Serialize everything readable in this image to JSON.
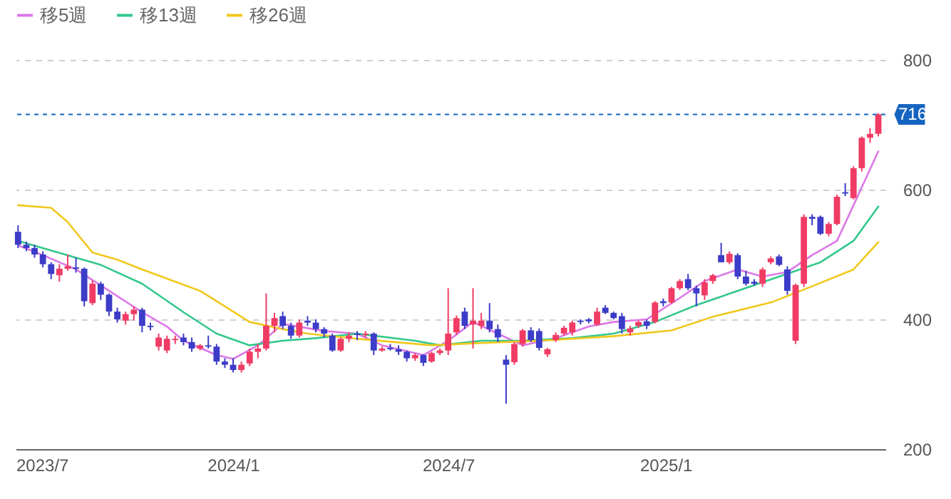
{
  "chart_data": {
    "type": "candlestick",
    "x": [
      "2023-07-03",
      "2023-07-10",
      "2023-07-17",
      "2023-07-24",
      "2023-07-31",
      "2023-08-07",
      "2023-08-14",
      "2023-08-21",
      "2023-08-28",
      "2023-09-04",
      "2023-09-11",
      "2023-09-18",
      "2023-09-25",
      "2023-10-02",
      "2023-10-09",
      "2023-10-16",
      "2023-10-23",
      "2023-10-30",
      "2023-11-06",
      "2023-11-13",
      "2023-11-20",
      "2023-11-27",
      "2023-12-04",
      "2023-12-11",
      "2023-12-18",
      "2023-12-25",
      "2024-01-01",
      "2024-01-08",
      "2024-01-15",
      "2024-01-22",
      "2024-01-29",
      "2024-02-05",
      "2024-02-12",
      "2024-02-19",
      "2024-02-26",
      "2024-03-04",
      "2024-03-11",
      "2024-03-18",
      "2024-03-25",
      "2024-04-01",
      "2024-04-08",
      "2024-04-15",
      "2024-04-22",
      "2024-04-29",
      "2024-05-06",
      "2024-05-13",
      "2024-05-20",
      "2024-05-27",
      "2024-06-03",
      "2024-06-10",
      "2024-06-17",
      "2024-06-24",
      "2024-07-01",
      "2024-07-08",
      "2024-07-15",
      "2024-07-22",
      "2024-07-29",
      "2024-08-05",
      "2024-08-12",
      "2024-08-19",
      "2024-08-26",
      "2024-09-02",
      "2024-09-09",
      "2024-09-16",
      "2024-09-23",
      "2024-09-30",
      "2024-10-07",
      "2024-10-14",
      "2024-10-21",
      "2024-10-28",
      "2024-11-04",
      "2024-11-11",
      "2024-11-18",
      "2024-11-25",
      "2024-12-02",
      "2024-12-09",
      "2024-12-16",
      "2024-12-23",
      "2024-12-30",
      "2025-01-06",
      "2025-01-13",
      "2025-01-20",
      "2025-01-27",
      "2025-02-03",
      "2025-02-10",
      "2025-02-17",
      "2025-02-24",
      "2025-03-03",
      "2025-03-10",
      "2025-03-17",
      "2025-03-24",
      "2025-03-31",
      "2025-04-07",
      "2025-04-14",
      "2025-04-21",
      "2025-04-28",
      "2025-05-05",
      "2025-05-12",
      "2025-05-19",
      "2025-05-26",
      "2025-06-02",
      "2025-06-09",
      "2025-06-16",
      "2025-06-23",
      "2025-06-30"
    ],
    "ohlc": [
      [
        535,
        545,
        510,
        515
      ],
      [
        515,
        520,
        505,
        510
      ],
      [
        510,
        515,
        495,
        500
      ],
      [
        500,
        505,
        480,
        485
      ],
      [
        485,
        488,
        462,
        470
      ],
      [
        468,
        485,
        458,
        478
      ],
      [
        478,
        500,
        475,
        482
      ],
      [
        480,
        495,
        472,
        478
      ],
      [
        478,
        480,
        420,
        428
      ],
      [
        425,
        460,
        422,
        455
      ],
      [
        455,
        458,
        430,
        438
      ],
      [
        438,
        440,
        405,
        412
      ],
      [
        412,
        418,
        395,
        400
      ],
      [
        398,
        412,
        392,
        408
      ],
      [
        408,
        420,
        398,
        415
      ],
      [
        415,
        418,
        380,
        390
      ],
      [
        390,
        395,
        383,
        388
      ],
      [
        358,
        378,
        352,
        372
      ],
      [
        352,
        375,
        348,
        370
      ],
      [
        368,
        375,
        362,
        370
      ],
      [
        372,
        378,
        360,
        365
      ],
      [
        365,
        372,
        350,
        355
      ],
      [
        355,
        362,
        352,
        360
      ],
      [
        360,
        375,
        355,
        358
      ],
      [
        358,
        362,
        330,
        335
      ],
      [
        335,
        340,
        325,
        330
      ],
      [
        330,
        340,
        318,
        322
      ],
      [
        322,
        335,
        318,
        330
      ],
      [
        332,
        355,
        328,
        350
      ],
      [
        350,
        362,
        340,
        355
      ],
      [
        355,
        440,
        352,
        390
      ],
      [
        390,
        410,
        380,
        402
      ],
      [
        405,
        412,
        385,
        390
      ],
      [
        390,
        395,
        370,
        375
      ],
      [
        375,
        400,
        372,
        395
      ],
      [
        398,
        405,
        390,
        395
      ],
      [
        395,
        400,
        380,
        385
      ],
      [
        385,
        388,
        372,
        378
      ],
      [
        375,
        378,
        350,
        352
      ],
      [
        352,
        372,
        350,
        370
      ],
      [
        370,
        380,
        365,
        375
      ],
      [
        378,
        382,
        368,
        376
      ],
      [
        376,
        382,
        372,
        378
      ],
      [
        378,
        380,
        345,
        352
      ],
      [
        352,
        358,
        350,
        355
      ],
      [
        356,
        362,
        352,
        354
      ],
      [
        354,
        360,
        345,
        350
      ],
      [
        350,
        352,
        335,
        340
      ],
      [
        340,
        348,
        336,
        345
      ],
      [
        345,
        346,
        328,
        333
      ],
      [
        335,
        350,
        333,
        348
      ],
      [
        348,
        355,
        345,
        352
      ],
      [
        352,
        448,
        345,
        378
      ],
      [
        380,
        406,
        376,
        402
      ],
      [
        412,
        418,
        385,
        390
      ],
      [
        392,
        448,
        355,
        398
      ],
      [
        390,
        410,
        385,
        398
      ],
      [
        398,
        425,
        380,
        385
      ],
      [
        385,
        392,
        365,
        372
      ],
      [
        338,
        345,
        270,
        330
      ],
      [
        334,
        365,
        330,
        362
      ],
      [
        362,
        385,
        358,
        383
      ],
      [
        383,
        388,
        365,
        368
      ],
      [
        382,
        386,
        352,
        356
      ],
      [
        346,
        356,
        342,
        354
      ],
      [
        368,
        380,
        365,
        376
      ],
      [
        378,
        390,
        375,
        387
      ],
      [
        380,
        398,
        375,
        395
      ],
      [
        398,
        400,
        392,
        396
      ],
      [
        400,
        402,
        394,
        397
      ],
      [
        392,
        418,
        390,
        412
      ],
      [
        418,
        422,
        408,
        410
      ],
      [
        410,
        412,
        400,
        402
      ],
      [
        405,
        410,
        378,
        385
      ],
      [
        380,
        390,
        375,
        386
      ],
      [
        390,
        398,
        387,
        396
      ],
      [
        397,
        400,
        385,
        390
      ],
      [
        396,
        428,
        394,
        426
      ],
      [
        428,
        432,
        420,
        425
      ],
      [
        426,
        450,
        424,
        448
      ],
      [
        448,
        462,
        445,
        459
      ],
      [
        462,
        470,
        445,
        448
      ],
      [
        448,
        452,
        420,
        440
      ],
      [
        437,
        462,
        430,
        457
      ],
      [
        459,
        470,
        455,
        468
      ],
      [
        499,
        518,
        488,
        488
      ],
      [
        488,
        505,
        485,
        501
      ],
      [
        499,
        502,
        462,
        466
      ],
      [
        466,
        475,
        452,
        455
      ],
      [
        458,
        462,
        452,
        455
      ],
      [
        455,
        480,
        450,
        477
      ],
      [
        488,
        497,
        485,
        494
      ],
      [
        497,
        500,
        482,
        484
      ],
      [
        477,
        482,
        438,
        444
      ],
      [
        367,
        455,
        362,
        453
      ],
      [
        455,
        562,
        450,
        558
      ],
      [
        558,
        562,
        545,
        555
      ],
      [
        558,
        560,
        530,
        532
      ],
      [
        532,
        550,
        528,
        547
      ],
      [
        547,
        592,
        545,
        589
      ],
      [
        596,
        610,
        590,
        594
      ],
      [
        587,
        636,
        585,
        633
      ],
      [
        633,
        682,
        628,
        680
      ],
      [
        680,
        695,
        672,
        686
      ],
      [
        686,
        718,
        682,
        716
      ]
    ],
    "colors": [
      "#3c3cc8",
      "#3c3cc8",
      "#3c3cc8",
      "#3c3cc8",
      "#3c3cc8",
      "#f03c64",
      "#f03c64",
      "#3c3cc8",
      "#3c3cc8",
      "#f03c64",
      "#3c3cc8",
      "#3c3cc8",
      "#3c3cc8",
      "#f03c64",
      "#f03c64",
      "#3c3cc8",
      "#3c3cc8",
      "#f03c64",
      "#f03c64",
      "#f03c64",
      "#3c3cc8",
      "#3c3cc8",
      "#f03c64",
      "#3c3cc8",
      "#3c3cc8",
      "#3c3cc8",
      "#3c3cc8",
      "#f03c64",
      "#f03c64",
      "#f03c64",
      "#f03c64",
      "#f03c64",
      "#3c3cc8",
      "#3c3cc8",
      "#f03c64",
      "#3c3cc8",
      "#3c3cc8",
      "#3c3cc8",
      "#3c3cc8",
      "#f03c64",
      "#f03c64",
      "#3c3cc8",
      "#f03c64",
      "#3c3cc8",
      "#f03c64",
      "#3c3cc8",
      "#3c3cc8",
      "#3c3cc8",
      "#f03c64",
      "#3c3cc8",
      "#f03c64",
      "#f03c64",
      "#f03c64",
      "#f03c64",
      "#3c3cc8",
      "#f03c64",
      "#f03c64",
      "#3c3cc8",
      "#3c3cc8",
      "#3c3cc8",
      "#f03c64",
      "#f03c64",
      "#3c3cc8",
      "#3c3cc8",
      "#f03c64",
      "#f03c64",
      "#f03c64",
      "#f03c64",
      "#3c3cc8",
      "#3c3cc8",
      "#f03c64",
      "#3c3cc8",
      "#3c3cc8",
      "#3c3cc8",
      "#f03c64",
      "#f03c64",
      "#3c3cc8",
      "#f03c64",
      "#3c3cc8",
      "#f03c64",
      "#f03c64",
      "#3c3cc8",
      "#3c3cc8",
      "#f03c64",
      "#f03c64",
      "#3c3cc8",
      "#f03c64",
      "#3c3cc8",
      "#3c3cc8",
      "#3c3cc8",
      "#f03c64",
      "#f03c64",
      "#3c3cc8",
      "#3c3cc8",
      "#f03c64",
      "#f03c64",
      "#3c3cc8",
      "#3c3cc8",
      "#f03c64",
      "#f03c64",
      "#3c3cc8",
      "#f03c64",
      "#f03c64",
      "#f03c64",
      "#f03c64"
    ],
    "series": [
      {
        "name": "移5週",
        "type": "line",
        "color": "#dc78e6",
        "x": [
          "2023-07-03",
          "2023-07-24",
          "2023-08-21",
          "2023-09-18",
          "2023-10-16",
          "2023-11-06",
          "2023-11-20",
          "2023-12-18",
          "2024-01-01",
          "2024-01-22",
          "2024-02-12",
          "2024-03-18",
          "2024-04-15",
          "2024-05-06",
          "2024-06-10",
          "2024-07-01",
          "2024-07-22",
          "2024-08-12",
          "2024-09-02",
          "2024-09-30",
          "2024-10-28",
          "2024-11-18",
          "2024-12-16",
          "2025-01-13",
          "2025-02-03",
          "2025-03-03",
          "2025-03-24",
          "2025-04-14",
          "2025-05-05",
          "2025-05-26",
          "2025-06-09",
          "2025-06-30"
        ],
        "values": [
          514,
          499,
          477,
          444,
          411,
          389,
          367,
          345,
          339,
          360,
          393,
          382,
          378,
          360,
          345,
          367,
          396,
          378,
          360,
          371,
          389,
          396,
          400,
          433,
          459,
          477,
          466,
          473,
          499,
          521,
          576,
          659
        ]
      },
      {
        "name": "移13週",
        "type": "line",
        "color": "#32c88c",
        "x": [
          "2023-07-03",
          "2023-07-24",
          "2023-08-21",
          "2023-09-11",
          "2023-10-16",
          "2023-11-20",
          "2023-12-18",
          "2024-01-15",
          "2024-02-12",
          "2024-03-11",
          "2024-04-15",
          "2024-06-03",
          "2024-06-24",
          "2024-07-29",
          "2024-09-02",
          "2024-10-14",
          "2024-11-18",
          "2024-12-23",
          "2025-01-27",
          "2025-03-03",
          "2025-04-07",
          "2025-05-12",
          "2025-06-09",
          "2025-06-30"
        ],
        "values": [
          521,
          510,
          495,
          484,
          455,
          411,
          378,
          360,
          367,
          371,
          378,
          367,
          360,
          367,
          367,
          371,
          378,
          396,
          422,
          444,
          466,
          488,
          521,
          574
        ]
      },
      {
        "name": "移26週",
        "type": "line",
        "color": "#f0c81e",
        "x": [
          "2023-07-03",
          "2023-07-31",
          "2023-08-14",
          "2023-09-04",
          "2023-09-25",
          "2023-10-16",
          "2023-12-04",
          "2024-01-15",
          "2024-02-12",
          "2024-03-04",
          "2024-04-15",
          "2024-06-17",
          "2024-07-22",
          "2024-09-16",
          "2024-11-18",
          "2025-01-06",
          "2025-02-10",
          "2025-03-31",
          "2025-05-05",
          "2025-06-09",
          "2025-06-30"
        ],
        "values": [
          576,
          572,
          550,
          503,
          492,
          477,
          444,
          396,
          385,
          378,
          370,
          360,
          363,
          367,
          374,
          383,
          404,
          426,
          451,
          477,
          519
        ]
      }
    ],
    "xlim": [
      "2023-07-01",
      "2025-07-06"
    ],
    "xticks": [
      {
        "value": "2023-07-01",
        "label": "2023/7"
      },
      {
        "value": "2024-01-01",
        "label": "2024/1"
      },
      {
        "value": "2024-07-01",
        "label": "2024/7"
      },
      {
        "value": "2025-01-01",
        "label": "2025/1"
      }
    ],
    "ylim": [
      200,
      800
    ],
    "yticks": [
      200,
      400,
      600,
      800
    ],
    "grid": "y",
    "legend": "top left",
    "marker": "none",
    "line_style": "solid",
    "ref_lines": [
      {
        "axis": "y",
        "value": 716,
        "label": "716",
        "color": "#1565c0",
        "line_style": "dashed"
      }
    ]
  }
}
